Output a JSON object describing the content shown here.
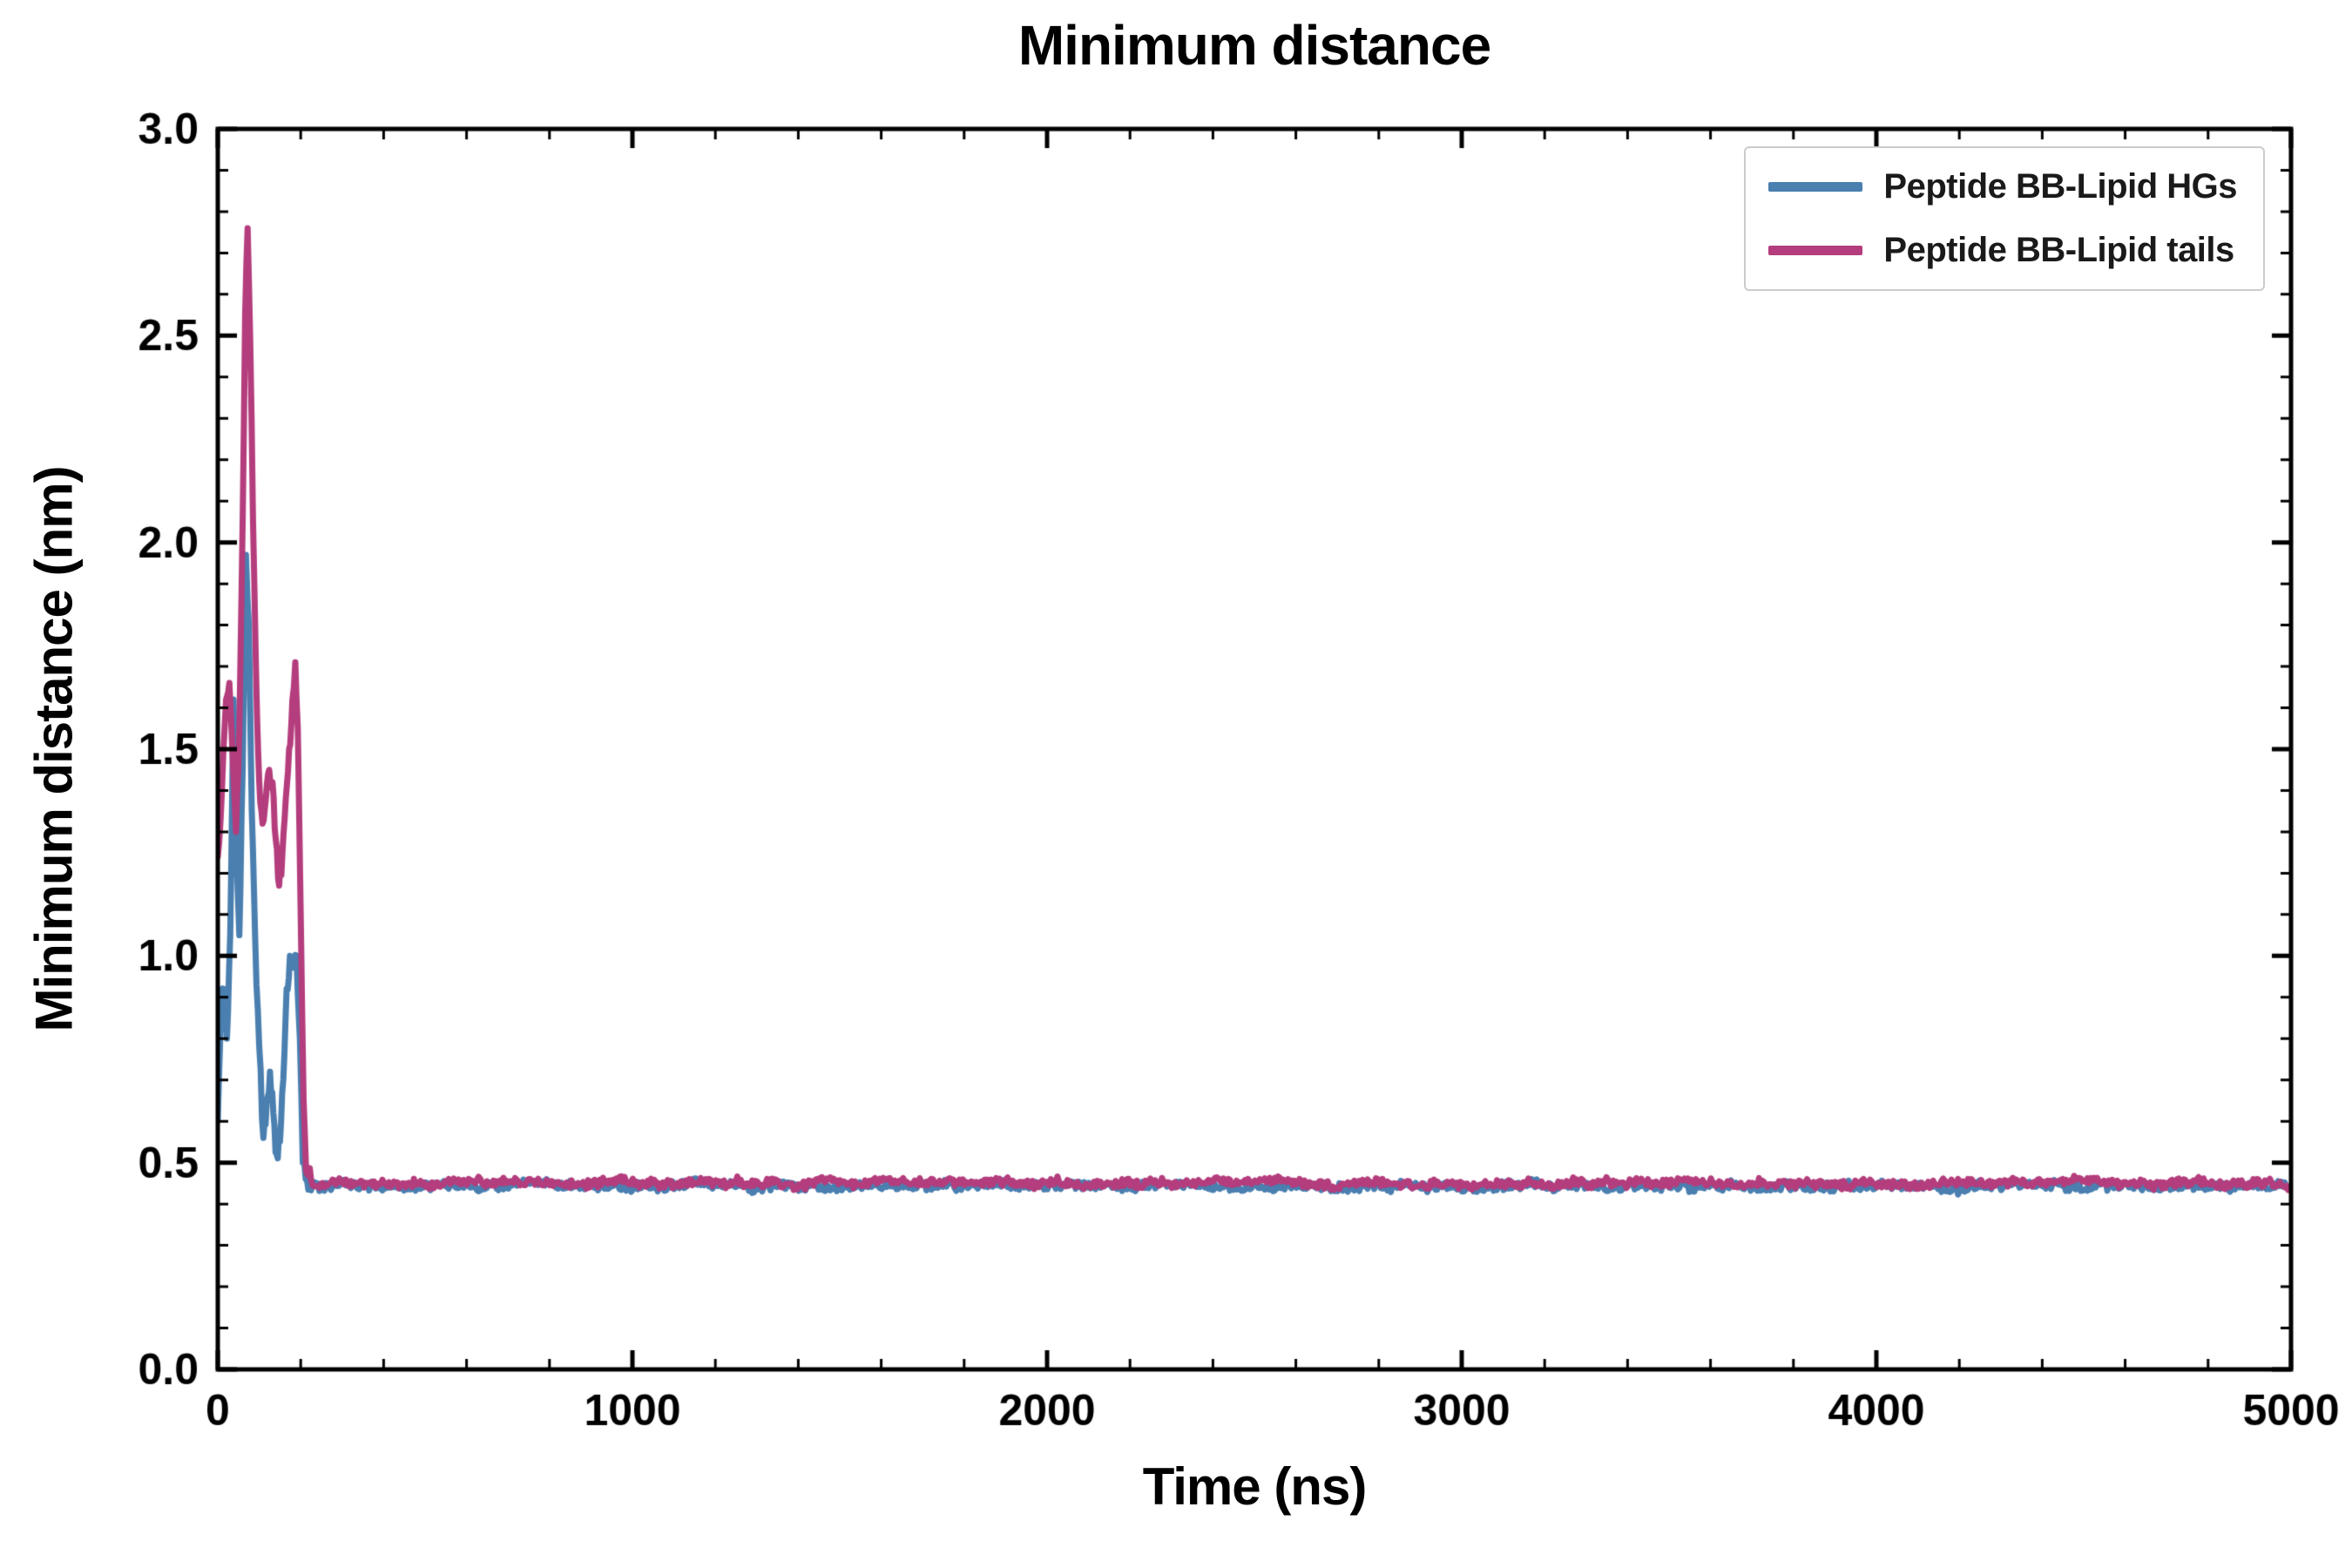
{
  "chart_data": {
    "type": "line",
    "title": "Minimum distance",
    "xlabel": "Time (ns)",
    "ylabel": "Minimum distance (nm)",
    "xlim": [
      0,
      5000
    ],
    "ylim": [
      0,
      3.0
    ],
    "x_major_ticks": [
      0,
      1000,
      2000,
      3000,
      4000,
      5000
    ],
    "x_tick_labels": [
      "0",
      "1000",
      "2000",
      "3000",
      "4000",
      "5000"
    ],
    "x_minor_step": 200,
    "y_major_ticks": [
      0,
      0.5,
      1.0,
      1.5,
      2.0,
      2.5,
      3.0
    ],
    "y_tick_labels": [
      "0.0",
      "0.5",
      "1.0",
      "1.5",
      "2.0",
      "2.5",
      "3.0"
    ],
    "y_minor_step": 0.1,
    "grid": false,
    "legend_position": "upper right",
    "axis_color": "#000000",
    "background_color": "#ffffff",
    "series": [
      {
        "name": "Peptide BB-Lipid HGs",
        "color": "#4a7fb0",
        "line_width": 7,
        "initial_transient": [
          [
            0,
            0.6
          ],
          [
            8,
            0.88
          ],
          [
            15,
            0.92
          ],
          [
            22,
            0.8
          ],
          [
            30,
            1.05
          ],
          [
            38,
            1.62
          ],
          [
            45,
            1.25
          ],
          [
            52,
            1.05
          ],
          [
            60,
            1.45
          ],
          [
            68,
            1.97
          ],
          [
            75,
            1.8
          ],
          [
            82,
            1.35
          ],
          [
            90,
            1.05
          ],
          [
            100,
            0.78
          ],
          [
            110,
            0.56
          ],
          [
            118,
            0.65
          ],
          [
            126,
            0.72
          ],
          [
            134,
            0.62
          ],
          [
            142,
            0.52
          ],
          [
            150,
            0.55
          ],
          [
            158,
            0.7
          ],
          [
            166,
            0.92
          ],
          [
            174,
            1.0
          ],
          [
            182,
            0.98
          ],
          [
            190,
            1.0
          ],
          [
            198,
            0.8
          ],
          [
            205,
            0.5
          ],
          [
            212,
            0.46
          ],
          [
            225,
            0.445
          ]
        ],
        "steady": {
          "from": 225,
          "to": 5000,
          "value": 0.443,
          "noise": 0.01,
          "sample_step": 4,
          "seed": 42
        }
      },
      {
        "name": "Peptide BB-Lipid tails",
        "color": "#b43d7d",
        "line_width": 7,
        "initial_transient": [
          [
            0,
            1.24
          ],
          [
            10,
            1.4
          ],
          [
            20,
            1.62
          ],
          [
            28,
            1.66
          ],
          [
            36,
            1.48
          ],
          [
            44,
            1.3
          ],
          [
            52,
            1.55
          ],
          [
            60,
            2.05
          ],
          [
            66,
            2.55
          ],
          [
            72,
            2.76
          ],
          [
            78,
            2.5
          ],
          [
            85,
            2.05
          ],
          [
            92,
            1.7
          ],
          [
            100,
            1.42
          ],
          [
            108,
            1.32
          ],
          [
            116,
            1.38
          ],
          [
            124,
            1.45
          ],
          [
            132,
            1.42
          ],
          [
            140,
            1.28
          ],
          [
            148,
            1.17
          ],
          [
            156,
            1.25
          ],
          [
            164,
            1.38
          ],
          [
            172,
            1.5
          ],
          [
            180,
            1.62
          ],
          [
            187,
            1.71
          ],
          [
            193,
            1.55
          ],
          [
            200,
            1.1
          ],
          [
            207,
            0.65
          ],
          [
            213,
            0.48
          ],
          [
            225,
            0.46
          ]
        ],
        "steady": {
          "from": 225,
          "to": 5000,
          "value": 0.452,
          "noise": 0.01,
          "sample_step": 4,
          "seed": 1337
        }
      }
    ]
  }
}
